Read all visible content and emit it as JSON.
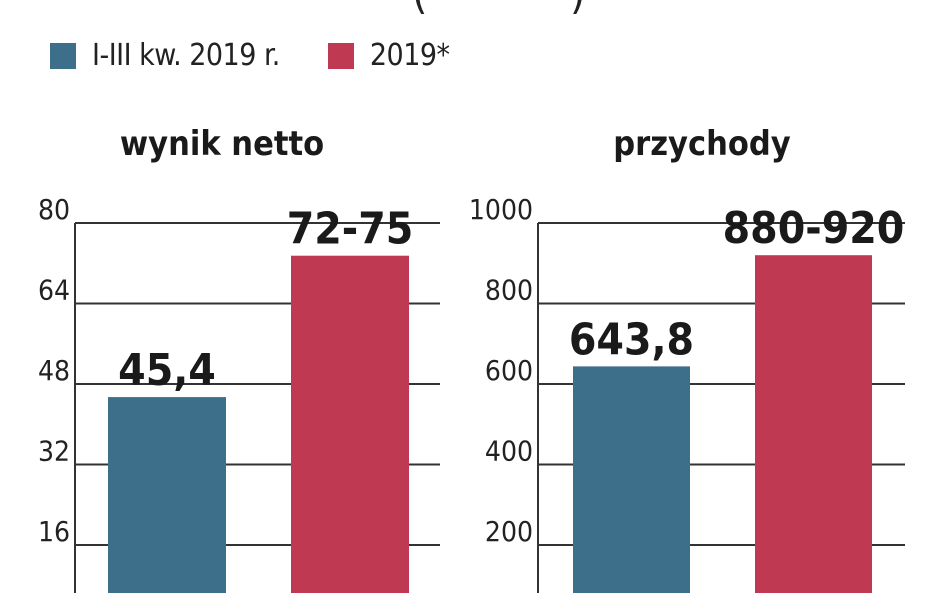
{
  "legend": [
    {
      "label": "I-III kw. 2019 r.",
      "color": "#3e6f8a"
    },
    {
      "label": "2019*",
      "color": "#c03952"
    }
  ],
  "chart_data": [
    {
      "type": "bar",
      "title": "wynik netto",
      "categories": [
        "I-III kw. 2019 r.",
        "2019*"
      ],
      "values": [
        45.4,
        73.5
      ],
      "value_labels": [
        "45,4",
        "72-75"
      ],
      "ylim": [
        0,
        80
      ],
      "yticks": [
        16,
        32,
        48,
        64,
        80
      ],
      "ytick_labels": [
        "16",
        "32",
        "48",
        "64",
        "80"
      ],
      "grid": true
    },
    {
      "type": "bar",
      "title": "przychody",
      "categories": [
        "I-III kw. 2019 r.",
        "2019*"
      ],
      "values": [
        643.8,
        920
      ],
      "value_labels": [
        "643,8",
        "880-920"
      ],
      "ylim": [
        0,
        1000
      ],
      "yticks": [
        200,
        400,
        600,
        800,
        1000
      ],
      "ytick_labels": [
        "200",
        "400",
        "600",
        "800",
        "1000"
      ],
      "grid": true
    }
  ]
}
